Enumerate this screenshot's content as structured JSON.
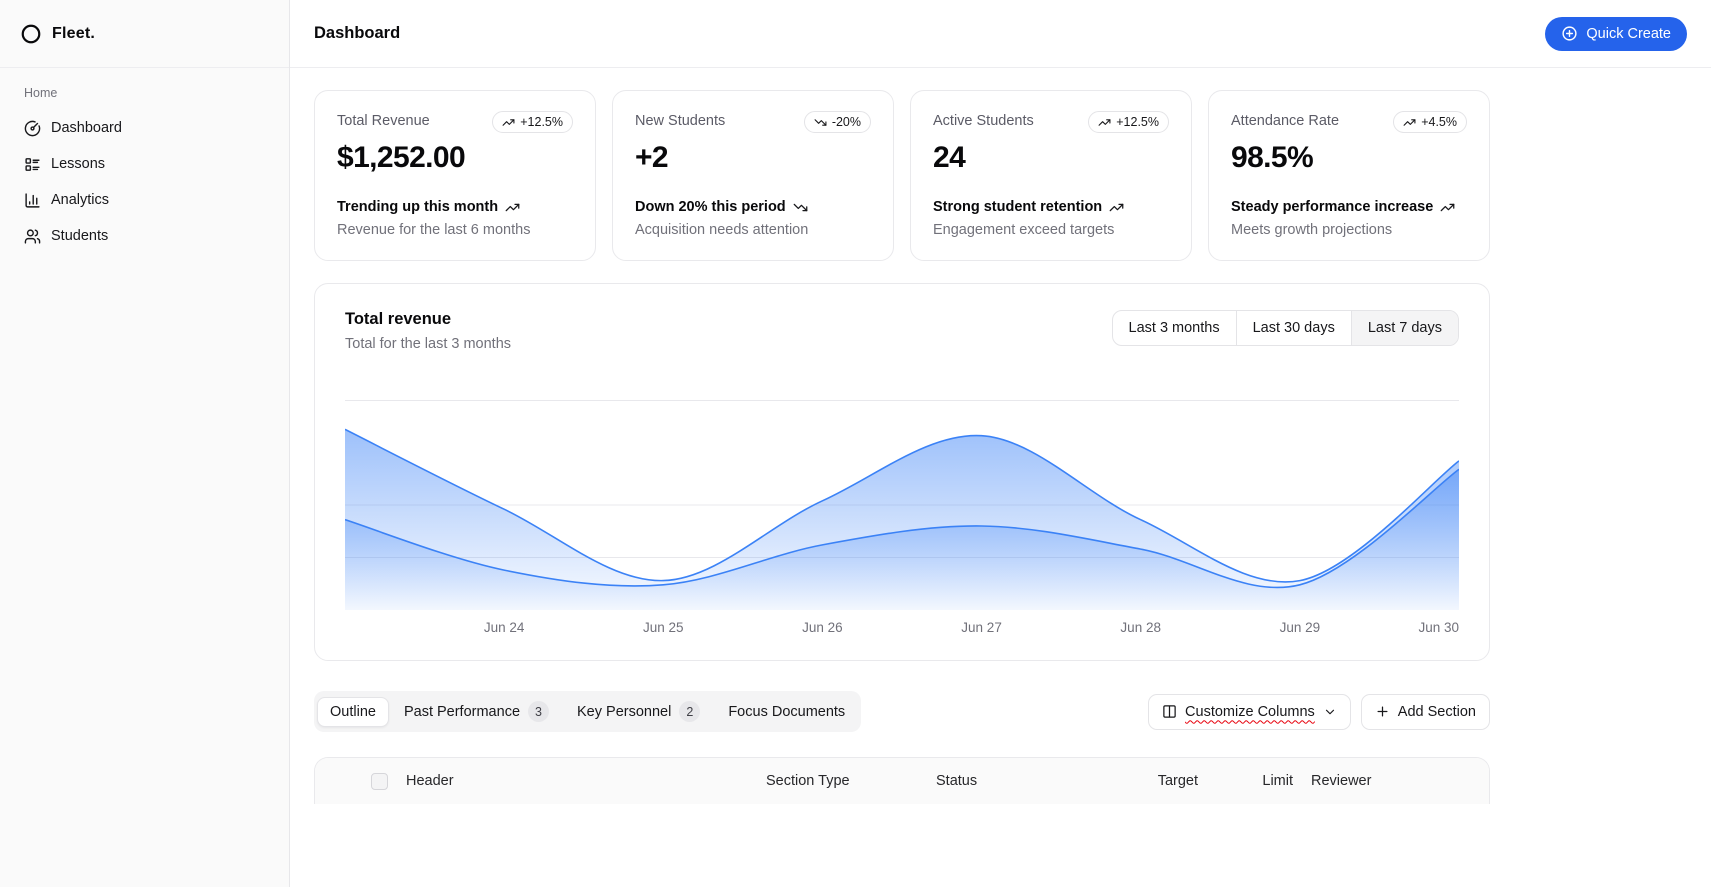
{
  "brand": {
    "name": "Fleet."
  },
  "sidebar": {
    "section_label": "Home",
    "items": [
      {
        "label": "Dashboard",
        "icon": "gauge-icon"
      },
      {
        "label": "Lessons",
        "icon": "list-icon"
      },
      {
        "label": "Analytics",
        "icon": "bar-chart-icon"
      },
      {
        "label": "Students",
        "icon": "users-icon"
      }
    ]
  },
  "header": {
    "title": "Dashboard",
    "quick_create": "Quick Create"
  },
  "stats": [
    {
      "label": "Total Revenue",
      "badge": "+12.5%",
      "trend": "up",
      "value": "$1,252.00",
      "line1": "Trending up this month",
      "line2": "Revenue for the last 6 months"
    },
    {
      "label": "New Students",
      "badge": "-20%",
      "trend": "down",
      "value": "+2",
      "line1": "Down 20% this period",
      "line2": "Acquisition needs attention"
    },
    {
      "label": "Active Students",
      "badge": "+12.5%",
      "trend": "up",
      "value": "24",
      "line1": "Strong student retention",
      "line2": "Engagement exceed targets"
    },
    {
      "label": "Attendance Rate",
      "badge": "+4.5%",
      "trend": "up",
      "value": "98.5%",
      "line1": "Steady performance increase",
      "line2": "Meets growth projections"
    }
  ],
  "chart_card": {
    "title": "Total revenue",
    "subtitle": "Total for the last 3 months",
    "ranges": [
      "Last 3 months",
      "Last 30 days",
      "Last 7 days"
    ],
    "selected_range": "Last 7 days"
  },
  "chart_data": {
    "type": "area",
    "title": "Total revenue",
    "xlabel": "",
    "ylabel": "",
    "legend": "none",
    "grid": true,
    "x": [
      "",
      "Jun 24",
      "Jun 25",
      "Jun 26",
      "Jun 27",
      "Jun 28",
      "Jun 29",
      "Jun 30"
    ],
    "series": [
      {
        "name": "primary",
        "values": [
          86,
          48,
          14,
          52,
          83,
          43,
          14,
          71
        ]
      },
      {
        "name": "secondary",
        "values": [
          43,
          19,
          12,
          31,
          40,
          29,
          12,
          67
        ]
      }
    ],
    "ylim": [
      0,
      100
    ],
    "gridlines_y": [
      100,
      50,
      25
    ],
    "stroke_color": "#3b82f6",
    "fill_color": "#3b82f6"
  },
  "tabs": {
    "items": [
      {
        "label": "Outline",
        "badge": "",
        "selected": true
      },
      {
        "label": "Past Performance",
        "badge": "3",
        "selected": false
      },
      {
        "label": "Key Personnel",
        "badge": "2",
        "selected": false
      },
      {
        "label": "Focus Documents",
        "badge": "",
        "selected": false
      }
    ],
    "customize_columns": "Customize Columns",
    "add_section": "Add Section"
  },
  "table": {
    "columns": [
      "Header",
      "Section Type",
      "Status",
      "Target",
      "Limit",
      "Reviewer"
    ]
  },
  "colors": {
    "accent": "#2563eb",
    "chart_blue": "#3b82f6",
    "border": "#e4e4e7"
  }
}
